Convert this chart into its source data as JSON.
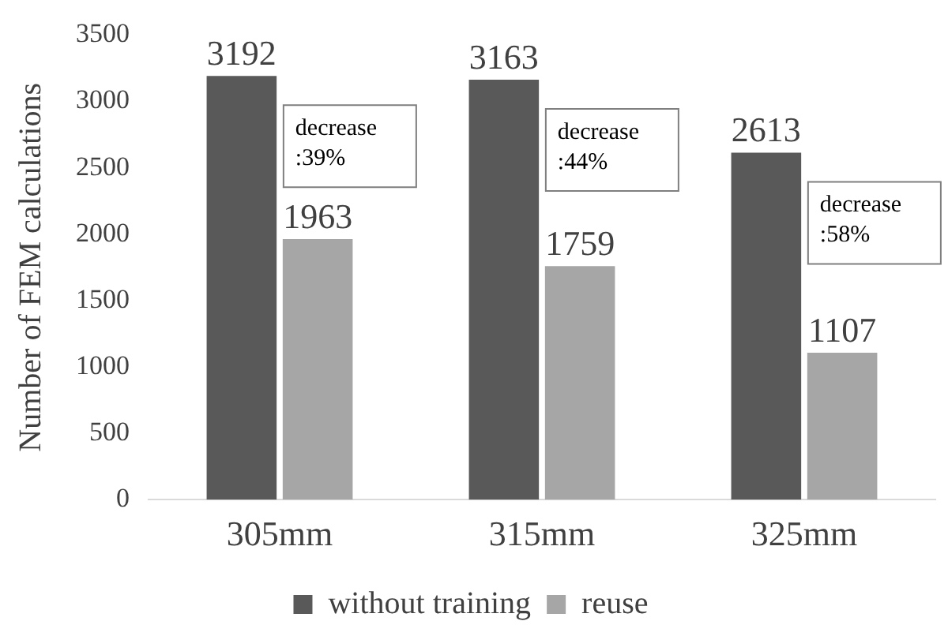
{
  "chart_data": {
    "type": "bar",
    "ylabel": "Number of FEM calculations",
    "categories": [
      "305mm",
      "315mm",
      "325mm"
    ],
    "series": [
      {
        "name": "without training",
        "color": "#595959",
        "values": [
          3192,
          3163,
          2613
        ]
      },
      {
        "name": "reuse",
        "color": "#a6a6a6",
        "values": [
          1963,
          1759,
          1107
        ]
      }
    ],
    "ylim": [
      0,
      3500
    ],
    "yticks": [
      0,
      500,
      1000,
      1500,
      2000,
      2500,
      3000,
      3500
    ],
    "grid": false,
    "legend": "bottom",
    "data_labels": true,
    "annotations": [
      "decrease :39%",
      "decrease :44%",
      "decrease :58%"
    ]
  }
}
